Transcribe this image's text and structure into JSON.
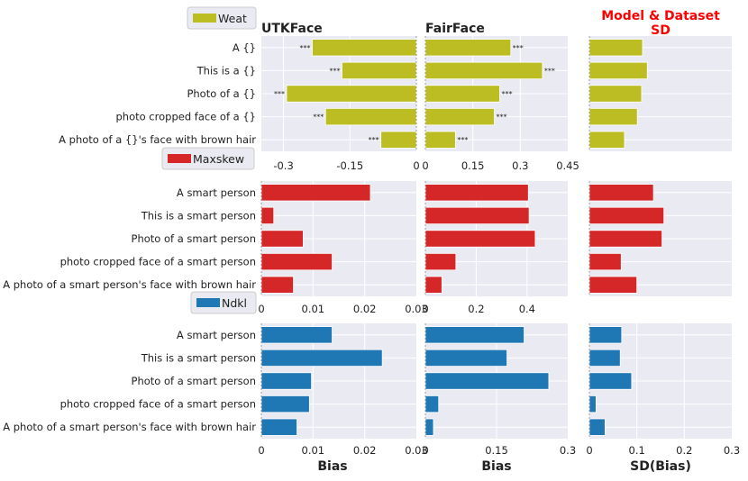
{
  "figure": {
    "column_titles": [
      "UTKFace",
      "FairFace"
    ],
    "sd_title_lines": [
      "Model & Dataset",
      "SD"
    ],
    "xlabels": [
      "Bias",
      "Bias",
      "SD(Bias)"
    ]
  },
  "colors": {
    "panel_bg": "#eaeaf2",
    "grid": "#ffffff",
    "red_title": "#ff0000",
    "weat": "#bcbd22",
    "maxskew": "#d62728",
    "ndkl": "#1f77b4"
  },
  "chart_data": [
    {
      "type": "bar",
      "orientation": "horizontal",
      "metric": "Weat",
      "legend": "Weat",
      "color": "#bcbd22",
      "categories": [
        "A {}",
        "This is a {}",
        "Photo of a {}",
        "photo cropped face of a {}",
        "A photo of a {}'s face with brown hair"
      ],
      "panels": [
        {
          "dataset": "UTKFace",
          "values": [
            -0.235,
            -0.168,
            -0.293,
            -0.205,
            -0.08
          ],
          "significance": [
            "***",
            "***",
            "***",
            "***",
            "***"
          ],
          "xlim": [
            -0.35,
            0.0
          ],
          "xticks": [
            -0.3,
            -0.15,
            0
          ],
          "xtick_labels": [
            "-0.3",
            "-0.15",
            "0"
          ]
        },
        {
          "dataset": "FairFace",
          "values": [
            0.27,
            0.37,
            0.235,
            0.218,
            0.095
          ],
          "significance": [
            "***",
            "***",
            "***",
            "***",
            "***"
          ],
          "xlim": [
            0.0,
            0.45
          ],
          "xticks": [
            0,
            0.15,
            0.3,
            0.45
          ],
          "xtick_labels": [
            "0",
            "0.15",
            "0.3",
            "0.45"
          ]
        },
        {
          "dataset": "Model & Dataset SD",
          "values": [
            0.112,
            0.122,
            0.11,
            0.101,
            0.074
          ],
          "xlim": [
            0,
            0.3
          ],
          "xticks": [],
          "xtick_labels": []
        }
      ]
    },
    {
      "type": "bar",
      "orientation": "horizontal",
      "metric": "Maxskew",
      "legend": "Maxskew",
      "color": "#d62728",
      "categories": [
        "A smart person",
        "This is a smart person",
        "Photo of a smart person",
        "photo cropped face of a smart person",
        "A photo of a smart person's face with brown hair"
      ],
      "panels": [
        {
          "dataset": "UTKFace",
          "values": [
            0.0211,
            0.0024,
            0.0081,
            0.0137,
            0.0062
          ],
          "xlim": [
            0,
            0.03
          ],
          "xticks": [
            0,
            0.01,
            0.02,
            0.03
          ],
          "xtick_labels": [
            "0",
            "0.01",
            "0.02",
            "0.03"
          ]
        },
        {
          "dataset": "FairFace",
          "values": [
            0.405,
            0.408,
            0.432,
            0.12,
            0.065
          ],
          "xlim": [
            0,
            0.56
          ],
          "xticks": [
            0,
            0.2,
            0.4
          ],
          "xtick_labels": [
            "0",
            "0.2",
            "0.4"
          ]
        },
        {
          "dataset": "Model & Dataset SD",
          "values": [
            0.135,
            0.157,
            0.153,
            0.067,
            0.1
          ],
          "xlim": [
            0,
            0.3
          ],
          "xticks": [],
          "xtick_labels": []
        }
      ]
    },
    {
      "type": "bar",
      "orientation": "horizontal",
      "metric": "Ndkl",
      "legend": "Ndkl",
      "color": "#1f77b4",
      "categories": [
        "A smart person",
        "This is a smart person",
        "Photo of a smart person",
        "photo cropped face of a smart person",
        "A photo of a smart person's face with brown hair"
      ],
      "panels": [
        {
          "dataset": "UTKFace",
          "values": [
            0.0137,
            0.0234,
            0.0097,
            0.0093,
            0.0069
          ],
          "xlim": [
            0,
            0.03
          ],
          "xticks": [
            0,
            0.01,
            0.02,
            0.03
          ],
          "xtick_labels": [
            "0",
            "0.01",
            "0.02",
            "0.03"
          ]
        },
        {
          "dataset": "FairFace",
          "values": [
            0.208,
            0.172,
            0.26,
            0.028,
            0.017
          ],
          "xlim": [
            0,
            0.3
          ],
          "xticks": [
            0,
            0.15,
            0.3
          ],
          "xtick_labels": [
            "0",
            "0.15",
            "0.3"
          ]
        },
        {
          "dataset": "Model & Dataset SD",
          "values": [
            0.068,
            0.065,
            0.089,
            0.014,
            0.033
          ],
          "xlim": [
            0,
            0.3
          ],
          "xticks": [
            0,
            0.1,
            0.2,
            0.3
          ],
          "xtick_labels": [
            "0",
            "0.1",
            "0.2",
            "0.3"
          ]
        }
      ]
    }
  ]
}
